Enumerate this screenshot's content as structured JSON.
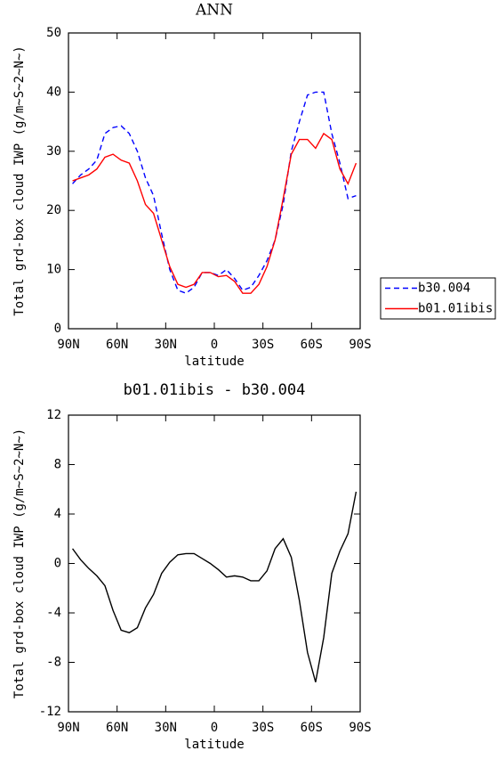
{
  "chart_data": [
    {
      "type": "line",
      "title": "ANN",
      "xlabel": "latitude",
      "ylabel": "Total grd-box cloud IWP (g/m~S~2~N~)",
      "x": [
        87.5,
        82.5,
        77.5,
        72.5,
        67.5,
        62.5,
        57.5,
        52.5,
        47.5,
        42.5,
        37.5,
        32.5,
        27.5,
        22.5,
        17.5,
        12.5,
        7.5,
        2.5,
        -2.5,
        -7.5,
        -12.5,
        -17.5,
        -22.5,
        -27.5,
        -32.5,
        -37.5,
        -42.5,
        -47.5,
        -52.5,
        -57.5,
        -62.5,
        -67.5,
        -72.5,
        -77.5,
        -82.5,
        -87.5
      ],
      "series": [
        {
          "name": "b30.004",
          "color": "#0000ff",
          "style": "dashed",
          "values": [
            24.5,
            26,
            27,
            28.5,
            33,
            34,
            34.3,
            33,
            30,
            25.5,
            22.5,
            16,
            10,
            6.5,
            6,
            7,
            9.5,
            9.5,
            9,
            10,
            8.5,
            6.5,
            7,
            9,
            11.5,
            15,
            21,
            30,
            35,
            39.5,
            40,
            40,
            33,
            28,
            22,
            22.5
          ]
        },
        {
          "name": "b01.01ibis",
          "color": "#ff0000",
          "style": "solid",
          "values": [
            25,
            25.5,
            26,
            27,
            29,
            29.5,
            28.5,
            28,
            25,
            21,
            19.5,
            15,
            10.5,
            7.5,
            7,
            7.5,
            9.5,
            9.5,
            8.8,
            9,
            8,
            6,
            6,
            7.5,
            10.5,
            15,
            22,
            29.5,
            32,
            32,
            30.5,
            33,
            32,
            27,
            24.5,
            28
          ]
        }
      ],
      "xlim": [
        90,
        -90
      ],
      "xticks": [
        {
          "value": 90,
          "label": "90N"
        },
        {
          "value": 60,
          "label": "60N"
        },
        {
          "value": 30,
          "label": "30N"
        },
        0,
        {
          "value": -30,
          "label": "30S"
        },
        {
          "value": -60,
          "label": "60S"
        },
        {
          "value": -90,
          "label": "90S"
        }
      ],
      "ylim": [
        0,
        50
      ],
      "yticks": [
        0,
        10,
        20,
        30,
        40,
        50
      ],
      "legend": "right"
    },
    {
      "type": "line",
      "title": "b01.01ibis - b30.004",
      "xlabel": "latitude",
      "ylabel": "Total grd-box cloud IWP (g/m~S~2~N~)",
      "x": [
        87.5,
        82.5,
        77.5,
        72.5,
        67.5,
        62.5,
        57.5,
        52.5,
        47.5,
        42.5,
        37.5,
        32.5,
        27.5,
        22.5,
        17.5,
        12.5,
        7.5,
        2.5,
        -2.5,
        -7.5,
        -12.5,
        -17.5,
        -22.5,
        -27.5,
        -32.5,
        -37.5,
        -42.5,
        -47.5,
        -52.5,
        -57.5,
        -62.5,
        -67.5,
        -72.5,
        -77.5,
        -82.5,
        -87.5
      ],
      "values": [
        1.2,
        0.3,
        -0.4,
        -1.0,
        -1.8,
        -3.8,
        -5.4,
        -5.6,
        -5.2,
        -3.6,
        -2.5,
        -0.8,
        0.1,
        0.7,
        0.8,
        0.8,
        0.4,
        0,
        -0.5,
        -1.1,
        -1.0,
        -1.1,
        -1.4,
        -1.4,
        -0.6,
        1.2,
        2.0,
        0.5,
        -3,
        -7.2,
        -9.6,
        -6,
        -0.8,
        1,
        2.4,
        5.8
      ],
      "color": "#000000",
      "xlim": [
        90,
        -90
      ],
      "xticks": [
        {
          "value": 90,
          "label": "90N"
        },
        {
          "value": 60,
          "label": "60N"
        },
        {
          "value": 30,
          "label": "30N"
        },
        0,
        {
          "value": -30,
          "label": "30S"
        },
        {
          "value": -60,
          "label": "60S"
        },
        {
          "value": -90,
          "label": "90S"
        }
      ],
      "ylim": [
        -12,
        12
      ],
      "yticks": [
        -12,
        -8,
        -4,
        0,
        4,
        8,
        12
      ]
    }
  ]
}
